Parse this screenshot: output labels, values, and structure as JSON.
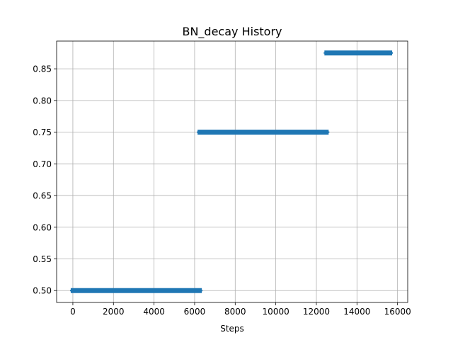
{
  "chart_data": {
    "type": "scatter",
    "title": "BN_decay History",
    "xlabel": "Steps",
    "ylabel": "",
    "xlim": [
      -800,
      16500
    ],
    "ylim": [
      0.48125,
      0.89375
    ],
    "xticks": [
      0,
      2000,
      4000,
      6000,
      8000,
      10000,
      12000,
      14000,
      16000
    ],
    "xtick_labels": [
      "0",
      "2000",
      "4000",
      "6000",
      "8000",
      "10000",
      "12000",
      "14000",
      "16000"
    ],
    "yticks": [
      0.5,
      0.55,
      0.6,
      0.65,
      0.7,
      0.75,
      0.8,
      0.85
    ],
    "ytick_labels": [
      "0.50",
      "0.55",
      "0.60",
      "0.65",
      "0.70",
      "0.75",
      "0.80",
      "0.85"
    ],
    "grid": true,
    "legend": "none",
    "marker": "plus",
    "series": [
      {
        "color": "#1f77b4",
        "segments": [
          {
            "x_start": 0,
            "x_end": 6250,
            "y": 0.5
          },
          {
            "x_start": 6250,
            "x_end": 12500,
            "y": 0.75
          },
          {
            "x_start": 12500,
            "x_end": 15630,
            "y": 0.875
          }
        ]
      }
    ]
  }
}
